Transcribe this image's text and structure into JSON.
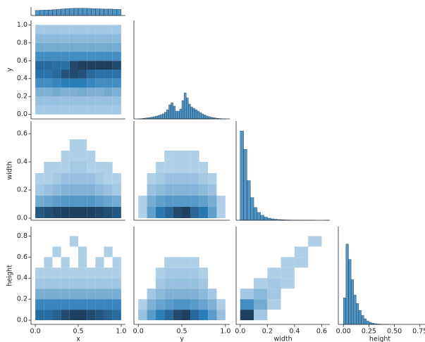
{
  "chart_data": [
    {
      "type": "histogram",
      "color": "#1f77b4",
      "xlim": [
        -0.05,
        1.05
      ],
      "ylim": [
        0,
        100
      ],
      "bins": [
        0,
        0.05,
        0.1,
        0.15,
        0.2,
        0.25,
        0.3,
        0.35,
        0.4,
        0.45,
        0.5,
        0.55,
        0.6,
        0.65,
        0.7,
        0.75,
        0.8,
        0.85,
        0.9,
        0.95,
        1
      ],
      "counts": [
        60,
        62,
        64,
        66,
        70,
        74,
        78,
        82,
        84,
        86,
        86,
        85,
        84,
        82,
        80,
        78,
        76,
        76,
        74,
        72
      ]
    },
    {
      "type": "hist2d",
      "color": "#1f77b4",
      "ylabel": "y",
      "xlim": [
        -0.05,
        1.05
      ],
      "ylim": [
        -0.05,
        1.05
      ],
      "yticks": [
        {
          "value": 0,
          "label": "0.0"
        },
        {
          "value": 0.2,
          "label": "0.2"
        },
        {
          "value": 0.4,
          "label": "0.4"
        },
        {
          "value": 0.6,
          "label": "0.6"
        },
        {
          "value": 0.8,
          "label": "0.8"
        },
        {
          "value": 1,
          "label": "1.0"
        }
      ],
      "xbins": [
        0,
        0.1,
        0.2,
        0.3,
        0.4,
        0.5,
        0.6,
        0.7,
        0.8,
        0.9,
        1
      ],
      "ybins": [
        0,
        0.1,
        0.2,
        0.3,
        0.4,
        0.5,
        0.6,
        0.7,
        0.8,
        0.9,
        1
      ],
      "counts": [
        [
          2,
          2,
          2,
          2,
          2,
          2,
          2,
          2,
          2,
          2
        ],
        [
          3,
          3,
          3,
          3,
          3,
          3,
          3,
          3,
          3,
          3
        ],
        [
          5,
          5,
          6,
          5,
          5,
          6,
          5,
          5,
          6,
          5
        ],
        [
          10,
          10,
          11,
          12,
          12,
          12,
          11,
          10,
          10,
          10
        ],
        [
          14,
          14,
          16,
          20,
          22,
          20,
          16,
          14,
          14,
          14
        ],
        [
          16,
          16,
          15,
          14,
          22,
          24,
          24,
          24,
          24,
          22
        ],
        [
          10,
          10,
          10,
          10,
          10,
          10,
          10,
          10,
          10,
          10
        ],
        [
          6,
          6,
          6,
          6,
          6,
          6,
          6,
          6,
          6,
          6
        ],
        [
          4,
          4,
          4,
          4,
          4,
          4,
          4,
          4,
          4,
          4
        ],
        [
          2,
          2,
          2,
          2,
          2,
          2,
          2,
          2,
          2,
          2
        ]
      ]
    },
    {
      "type": "histogram",
      "color": "#1f77b4",
      "xlim": [
        -0.05,
        1.05
      ],
      "ylim": [
        0,
        1400
      ],
      "bins": [
        0,
        0.025,
        0.05,
        0.075,
        0.1,
        0.125,
        0.15,
        0.175,
        0.2,
        0.225,
        0.25,
        0.275,
        0.3,
        0.325,
        0.35,
        0.375,
        0.4,
        0.425,
        0.45,
        0.475,
        0.5,
        0.525,
        0.55,
        0.575,
        0.6,
        0.625,
        0.65,
        0.675,
        0.7,
        0.725,
        0.75,
        0.775,
        0.8,
        0.825,
        0.85,
        0.875,
        0.9,
        0.925,
        0.95,
        0.975,
        1
      ],
      "counts": [
        2,
        4,
        8,
        12,
        16,
        20,
        26,
        32,
        40,
        50,
        60,
        72,
        95,
        130,
        200,
        230,
        180,
        110,
        110,
        140,
        260,
        370,
        300,
        210,
        170,
        150,
        130,
        110,
        90,
        70,
        55,
        42,
        32,
        24,
        18,
        12,
        8,
        5,
        3,
        2
      ]
    },
    {
      "type": "hist2d",
      "color": "#1f77b4",
      "ylabel": "width",
      "xlim": [
        -0.05,
        1.05
      ],
      "ylim": [
        -0.015,
        0.69
      ],
      "yticks": [
        {
          "value": 0,
          "label": "0.0"
        },
        {
          "value": 0.2,
          "label": "0.2"
        },
        {
          "value": 0.4,
          "label": "0.4"
        },
        {
          "value": 0.6,
          "label": "0.6"
        }
      ],
      "xbins": [
        0,
        0.1,
        0.2,
        0.3,
        0.4,
        0.5,
        0.6,
        0.7,
        0.8,
        0.9,
        1
      ],
      "ybins": [
        0,
        0.08,
        0.16,
        0.24,
        0.32,
        0.4,
        0.48,
        0.56,
        0.64
      ],
      "counts": [
        [
          20,
          22,
          24,
          25,
          25,
          25,
          25,
          24,
          22,
          20
        ],
        [
          6,
          7,
          8,
          9,
          9,
          9,
          9,
          8,
          7,
          6
        ],
        [
          2,
          3,
          4,
          5,
          5,
          5,
          5,
          4,
          3,
          2
        ],
        [
          1,
          1,
          2,
          3,
          3,
          3,
          3,
          2,
          1,
          1
        ],
        [
          0,
          1,
          1,
          1,
          2,
          2,
          1,
          1,
          1,
          0
        ],
        [
          0,
          0,
          0,
          1,
          1,
          1,
          1,
          0,
          0,
          0
        ],
        [
          0,
          0,
          0,
          0,
          1,
          1,
          0,
          0,
          0,
          0
        ],
        [
          0,
          0,
          0,
          0,
          0,
          0,
          0,
          0,
          0,
          0
        ]
      ]
    },
    {
      "type": "hist2d",
      "color": "#1f77b4",
      "xlim": [
        -0.05,
        1.05
      ],
      "ylim": [
        -0.015,
        0.69
      ],
      "xbins": [
        0,
        0.1,
        0.2,
        0.3,
        0.4,
        0.5,
        0.6,
        0.7,
        0.8,
        0.9,
        1
      ],
      "ybins": [
        0,
        0.08,
        0.16,
        0.24,
        0.32,
        0.4,
        0.48,
        0.56,
        0.64
      ],
      "counts": [
        [
          1,
          8,
          14,
          18,
          24,
          26,
          18,
          14,
          8,
          1
        ],
        [
          1,
          6,
          8,
          9,
          9,
          9,
          9,
          8,
          6,
          1
        ],
        [
          0,
          3,
          4,
          5,
          5,
          5,
          5,
          4,
          3,
          0
        ],
        [
          0,
          1,
          2,
          3,
          3,
          3,
          3,
          2,
          1,
          0
        ],
        [
          0,
          0,
          1,
          1,
          1,
          1,
          1,
          1,
          0,
          0
        ],
        [
          0,
          0,
          0,
          1,
          1,
          1,
          1,
          0,
          0,
          0
        ],
        [
          0,
          0,
          0,
          0,
          0,
          0,
          0,
          0,
          0,
          0
        ],
        [
          0,
          0,
          0,
          0,
          0,
          0,
          0,
          0,
          0,
          0
        ]
      ]
    },
    {
      "type": "histogram",
      "color": "#1f77b4",
      "xlim": [
        -0.03,
        0.66
      ],
      "ylim": [
        0,
        1400
      ],
      "bins": [
        0,
        0.025,
        0.05,
        0.075,
        0.1,
        0.125,
        0.15,
        0.175,
        0.2,
        0.225,
        0.25,
        0.275,
        0.3,
        0.325,
        0.35,
        0.375,
        0.4,
        0.425,
        0.45,
        0.475,
        0.5,
        0.525,
        0.55,
        0.575,
        0.6,
        0.625,
        0.65
      ],
      "counts": [
        1260,
        1000,
        560,
        320,
        180,
        110,
        70,
        45,
        30,
        20,
        14,
        10,
        7,
        5,
        4,
        3,
        2,
        2,
        1,
        1,
        1,
        1,
        0,
        0,
        0,
        1
      ]
    },
    {
      "type": "hist2d",
      "color": "#1f77b4",
      "xlabel": "x",
      "ylabel": "height",
      "xlim": [
        -0.05,
        1.05
      ],
      "ylim": [
        -0.04,
        0.89
      ],
      "xticks": [
        {
          "value": 0,
          "label": "0.0"
        },
        {
          "value": 0.5,
          "label": "0.5"
        },
        {
          "value": 1,
          "label": "1.0"
        }
      ],
      "yticks": [
        {
          "value": 0,
          "label": "0.0"
        },
        {
          "value": 0.2,
          "label": "0.2"
        },
        {
          "value": 0.4,
          "label": "0.4"
        },
        {
          "value": 0.6,
          "label": "0.6"
        },
        {
          "value": 0.8,
          "label": "0.8"
        }
      ],
      "xbins": [
        0,
        0.1,
        0.2,
        0.3,
        0.4,
        0.5,
        0.6,
        0.7,
        0.8,
        0.9,
        1
      ],
      "ybins": [
        0,
        0.1,
        0.2,
        0.3,
        0.4,
        0.5,
        0.6,
        0.7,
        0.8
      ],
      "counts": [
        [
          14,
          14,
          16,
          20,
          22,
          22,
          20,
          18,
          16,
          14
        ],
        [
          10,
          10,
          10,
          10,
          10,
          10,
          10,
          10,
          10,
          10
        ],
        [
          5,
          5,
          5,
          5,
          5,
          5,
          5,
          5,
          5,
          5
        ],
        [
          2,
          2,
          2,
          2,
          2,
          2,
          2,
          2,
          2,
          2
        ],
        [
          1,
          1,
          1,
          1,
          1,
          1,
          1,
          1,
          1,
          1
        ],
        [
          0,
          1,
          0,
          1,
          0,
          1,
          0,
          1,
          0,
          1
        ],
        [
          0,
          0,
          1,
          0,
          0,
          1,
          0,
          0,
          1,
          0
        ],
        [
          0,
          0,
          0,
          0,
          1,
          0,
          0,
          0,
          0,
          0
        ]
      ]
    },
    {
      "type": "hist2d",
      "color": "#1f77b4",
      "xlabel": "y",
      "xlim": [
        -0.05,
        1.05
      ],
      "ylim": [
        -0.04,
        0.89
      ],
      "xticks": [
        {
          "value": 0,
          "label": "0.0"
        },
        {
          "value": 0.5,
          "label": "0.5"
        },
        {
          "value": 1,
          "label": "1.0"
        }
      ],
      "xbins": [
        0,
        0.1,
        0.2,
        0.3,
        0.4,
        0.5,
        0.6,
        0.7,
        0.8,
        0.9,
        1
      ],
      "ybins": [
        0,
        0.1,
        0.2,
        0.3,
        0.4,
        0.5,
        0.6,
        0.7,
        0.8
      ],
      "counts": [
        [
          3,
          8,
          12,
          16,
          22,
          24,
          16,
          12,
          8,
          3
        ],
        [
          1,
          5,
          7,
          8,
          9,
          9,
          8,
          7,
          5,
          1
        ],
        [
          0,
          2,
          4,
          5,
          5,
          5,
          5,
          4,
          2,
          0
        ],
        [
          0,
          0,
          2,
          3,
          3,
          3,
          3,
          2,
          0,
          0
        ],
        [
          0,
          0,
          1,
          2,
          2,
          2,
          2,
          1,
          0,
          0
        ],
        [
          0,
          0,
          0,
          1,
          1,
          1,
          1,
          0,
          0,
          0
        ],
        [
          0,
          0,
          0,
          0,
          0,
          0,
          0,
          0,
          0,
          0
        ],
        [
          0,
          0,
          0,
          0,
          0,
          0,
          0,
          0,
          0,
          0
        ]
      ]
    },
    {
      "type": "hist2d",
      "color": "#1f77b4",
      "xlabel": "width",
      "xlim": [
        -0.03,
        0.66
      ],
      "ylim": [
        -0.04,
        0.89
      ],
      "xticks": [
        {
          "value": 0,
          "label": "0.0"
        },
        {
          "value": 0.2,
          "label": "0.2"
        },
        {
          "value": 0.4,
          "label": "0.4"
        },
        {
          "value": 0.6,
          "label": "0.6"
        }
      ],
      "xbins": [
        0,
        0.1,
        0.2,
        0.3,
        0.4,
        0.5,
        0.6
      ],
      "ybins": [
        0,
        0.1,
        0.2,
        0.3,
        0.4,
        0.5,
        0.6,
        0.7,
        0.8
      ],
      "counts": [
        [
          24,
          2,
          0,
          0,
          0,
          0
        ],
        [
          10,
          6,
          1,
          0,
          0,
          0
        ],
        [
          2,
          4,
          2,
          0,
          0,
          0
        ],
        [
          0,
          1,
          2,
          1,
          0,
          0
        ],
        [
          0,
          0,
          1,
          1,
          0,
          0
        ],
        [
          0,
          0,
          0,
          1,
          1,
          0
        ],
        [
          0,
          0,
          0,
          0,
          1,
          0
        ],
        [
          0,
          0,
          0,
          0,
          0,
          1
        ]
      ]
    },
    {
      "type": "histogram",
      "color": "#1f77b4",
      "xlabel": "height",
      "xlim": [
        -0.05,
        0.8
      ],
      "ylim": [
        0,
        1400
      ],
      "xticks": [
        {
          "value": 0,
          "label": "0.00"
        },
        {
          "value": 0.25,
          "label": "0.25"
        },
        {
          "value": 0.5,
          "label": "0.50"
        },
        {
          "value": 0.75,
          "label": "0.75"
        }
      ],
      "bins": [
        0,
        0.025,
        0.05,
        0.075,
        0.1,
        0.125,
        0.15,
        0.175,
        0.2,
        0.225,
        0.25,
        0.275,
        0.3,
        0.325,
        0.35,
        0.375,
        0.4,
        0.425,
        0.45,
        0.475,
        0.5,
        0.525,
        0.55,
        0.575,
        0.6,
        0.625,
        0.65,
        0.675,
        0.7,
        0.725,
        0.75,
        0.775,
        0.8
      ],
      "counts": [
        380,
        1150,
        930,
        640,
        420,
        300,
        200,
        130,
        80,
        50,
        30,
        18,
        10,
        6,
        4,
        2,
        1,
        1,
        0,
        0,
        0,
        0,
        0,
        0,
        0,
        0,
        0,
        0,
        0,
        0,
        0,
        0
      ]
    }
  ]
}
